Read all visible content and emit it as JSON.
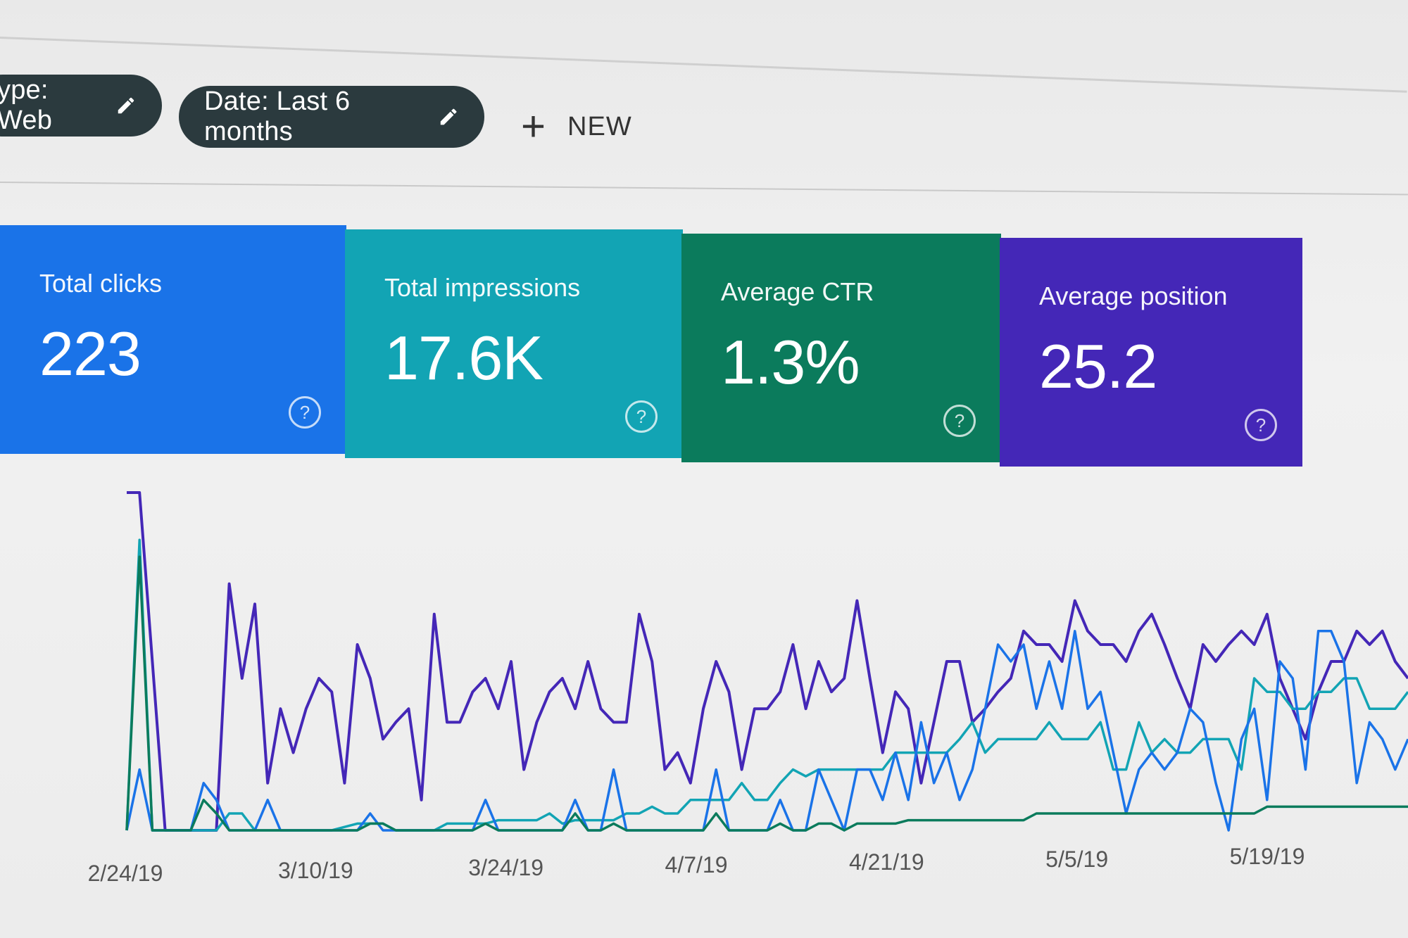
{
  "filters": {
    "type_chip": "ype: Web",
    "date_chip": "Date: Last 6 months",
    "new_label": "NEW"
  },
  "cards": [
    {
      "label": "Total clicks",
      "value": "223",
      "color": "#1a73e8"
    },
    {
      "label": "Total impressions",
      "value": "17.6K",
      "color": "#12a4b4"
    },
    {
      "label": "Average CTR",
      "value": "1.3%",
      "color": "#0b7b5c"
    },
    {
      "label": "Average position",
      "value": "25.2",
      "color": "#4427b7"
    }
  ],
  "icons": {
    "pencil": "pencil-icon",
    "plus": "plus-icon",
    "help": "help-circle-icon"
  },
  "chart_data": {
    "type": "line",
    "x_tick_labels": [
      "2/24/19",
      "3/10/19",
      "3/24/19",
      "4/7/19",
      "4/21/19",
      "5/5/19",
      "5/19/19"
    ],
    "ylim": [
      0,
      100
    ],
    "grid": false,
    "series": [
      {
        "color": "#4427b7",
        "values": [
          100,
          100,
          50,
          0,
          0,
          0,
          0,
          0,
          73,
          45,
          67,
          14,
          36,
          23,
          36,
          45,
          41,
          14,
          55,
          45,
          27,
          32,
          36,
          9,
          64,
          32,
          32,
          41,
          45,
          36,
          50,
          18,
          32,
          41,
          45,
          36,
          50,
          36,
          32,
          32,
          64,
          50,
          18,
          23,
          14,
          36,
          50,
          41,
          18,
          36,
          36,
          41,
          55,
          36,
          50,
          41,
          45,
          68,
          45,
          23,
          41,
          36,
          14,
          32,
          50,
          50,
          32,
          36,
          41,
          45,
          59,
          55,
          55,
          50,
          68,
          59,
          55,
          55,
          50,
          59,
          64,
          55,
          45,
          36,
          55,
          50,
          55,
          59,
          55,
          64,
          45,
          36,
          27,
          41,
          50,
          50,
          59,
          55,
          59,
          50,
          45
        ]
      },
      {
        "color": "#12a4b4",
        "values": [
          0,
          86,
          0,
          0,
          0,
          0,
          0,
          0,
          5,
          5,
          0,
          0,
          0,
          0,
          0,
          0,
          0,
          1,
          2,
          2,
          2,
          0,
          0,
          0,
          0,
          2,
          2,
          2,
          2,
          3,
          3,
          3,
          3,
          5,
          2,
          3,
          3,
          3,
          3,
          5,
          5,
          7,
          5,
          5,
          9,
          9,
          9,
          9,
          14,
          9,
          9,
          14,
          18,
          16,
          18,
          18,
          18,
          18,
          18,
          18,
          23,
          23,
          23,
          23,
          23,
          27,
          32,
          23,
          27,
          27,
          27,
          27,
          32,
          27,
          27,
          27,
          32,
          18,
          18,
          32,
          23,
          27,
          23,
          23,
          27,
          27,
          27,
          18,
          45,
          41,
          41,
          36,
          36,
          41,
          41,
          45,
          45,
          36,
          36,
          36,
          41
        ]
      },
      {
        "color": "#1a73e8",
        "values": [
          0,
          18,
          0,
          0,
          0,
          0,
          14,
          9,
          0,
          0,
          0,
          9,
          0,
          0,
          0,
          0,
          0,
          0,
          0,
          5,
          0,
          0,
          0,
          0,
          0,
          0,
          0,
          0,
          9,
          0,
          0,
          0,
          0,
          0,
          0,
          9,
          0,
          0,
          18,
          0,
          0,
          0,
          0,
          0,
          0,
          0,
          18,
          0,
          0,
          0,
          0,
          9,
          0,
          0,
          18,
          9,
          0,
          18,
          18,
          9,
          23,
          9,
          32,
          14,
          23,
          9,
          18,
          36,
          55,
          50,
          55,
          36,
          50,
          36,
          59,
          36,
          41,
          23,
          5,
          18,
          23,
          18,
          23,
          36,
          32,
          14,
          0,
          27,
          36,
          9,
          50,
          45,
          18,
          59,
          59,
          50,
          14,
          32,
          27,
          18,
          27
        ]
      },
      {
        "color": "#0b7b5c",
        "values": [
          0,
          81,
          0,
          0,
          0,
          0,
          9,
          5,
          0,
          0,
          0,
          0,
          0,
          0,
          0,
          0,
          0,
          0,
          0,
          2,
          2,
          0,
          0,
          0,
          0,
          0,
          0,
          0,
          2,
          0,
          0,
          0,
          0,
          0,
          0,
          5,
          0,
          0,
          2,
          0,
          0,
          0,
          0,
          0,
          0,
          0,
          5,
          0,
          0,
          0,
          0,
          2,
          0,
          0,
          2,
          2,
          0,
          2,
          2,
          2,
          2,
          3,
          3,
          3,
          3,
          3,
          3,
          3,
          3,
          3,
          3,
          5,
          5,
          5,
          5,
          5,
          5,
          5,
          5,
          5,
          5,
          5,
          5,
          5,
          5,
          5,
          5,
          5,
          5,
          7,
          7,
          7,
          7,
          7,
          7,
          7,
          7,
          7,
          7,
          7,
          7
        ]
      }
    ]
  }
}
